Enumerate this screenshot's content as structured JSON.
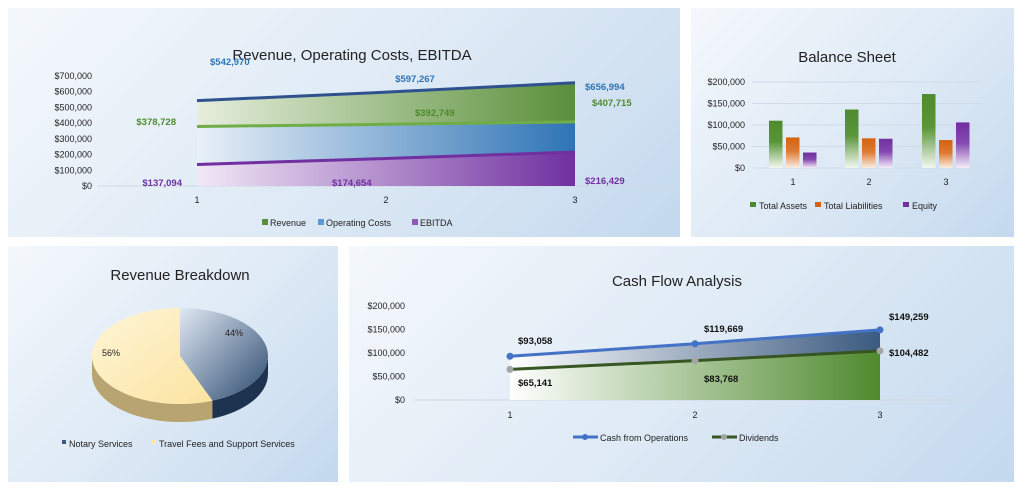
{
  "colors": {
    "green": "#4f8a2e",
    "blue": "#2e74b5",
    "darkblue": "#2f528f",
    "purple": "#7030a0",
    "orange": "#d4620f",
    "lineblue": "#4472c4",
    "linegreen": "#375623",
    "grey": "#a5a5a5",
    "notary": "#3a5a80",
    "travel": "#fde9a9"
  },
  "chart_data": [
    {
      "type": "area",
      "title": "Revenue, Operating Costs, EBITDA",
      "categories": [
        "1",
        "2",
        "3"
      ],
      "ylim": [
        0,
        700000
      ],
      "yticks": [
        "$0",
        "$100,000",
        "$200,000",
        "$300,000",
        "$400,000",
        "$500,000",
        "$600,000",
        "$700,000"
      ],
      "series": [
        {
          "name": "Revenue",
          "values": [
            542970,
            597267,
            656994
          ],
          "labels": [
            "$542,970",
            "$597,267",
            "$656,994"
          ]
        },
        {
          "name": "Operating Costs",
          "values": [
            378728,
            392749,
            407715
          ],
          "labels": [
            "$378,728",
            "$392,749",
            "$407,715"
          ]
        },
        {
          "name": "EBITDA",
          "values": [
            137094,
            174654,
            216429
          ],
          "labels": [
            "$137,094",
            "$174,654",
            "$216,429"
          ]
        }
      ],
      "legend": "bottom"
    },
    {
      "type": "bar",
      "title": "Balance Sheet",
      "categories": [
        "1",
        "2",
        "3"
      ],
      "ylim": [
        0,
        200000
      ],
      "yticks": [
        "$0",
        "$50,000",
        "$100,000",
        "$150,000",
        "$200,000"
      ],
      "series": [
        {
          "name": "Total Assets",
          "values": [
            110000,
            136000,
            172000
          ]
        },
        {
          "name": "Total Liabilities",
          "values": [
            71000,
            69000,
            65000
          ]
        },
        {
          "name": "Equity",
          "values": [
            36000,
            68000,
            106000
          ]
        }
      ],
      "legend": "bottom"
    },
    {
      "type": "pie",
      "title": "Revenue Breakdown",
      "slices": [
        {
          "name": "Notary Services",
          "value": 44,
          "label": "44%"
        },
        {
          "name": "Travel Fees and Support Services",
          "value": 56,
          "label": "56%"
        }
      ],
      "legend": "bottom"
    },
    {
      "type": "line",
      "title": "Cash Flow Analysis",
      "categories": [
        "1",
        "2",
        "3"
      ],
      "ylim": [
        0,
        200000
      ],
      "yticks": [
        "$0",
        "$50,000",
        "$100,000",
        "$150,000",
        "$200,000"
      ],
      "series": [
        {
          "name": "Cash from Operations",
          "values": [
            93058,
            119669,
            149259
          ],
          "labels": [
            "$93,058",
            "$119,669",
            "$149,259"
          ]
        },
        {
          "name": "Dividends",
          "values": [
            65141,
            83768,
            104482
          ],
          "labels": [
            "$65,141",
            "$83,768",
            "$104,482"
          ]
        }
      ],
      "legend": "bottom"
    }
  ]
}
